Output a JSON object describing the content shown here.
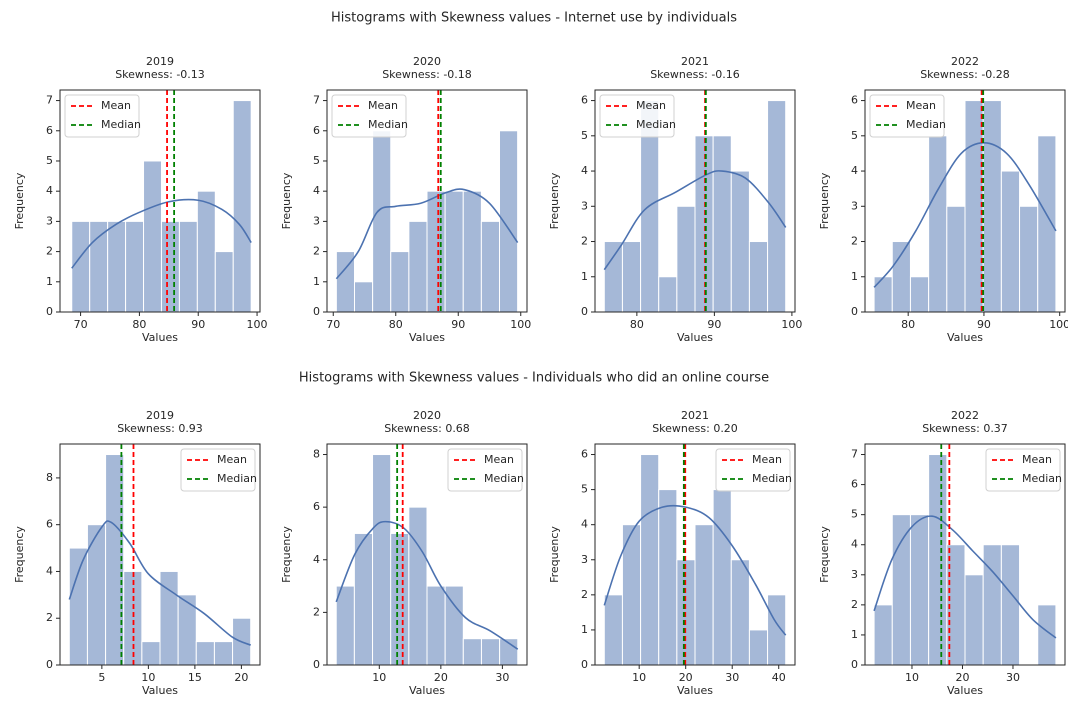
{
  "figure_titles": [
    "Histograms with Skewness values - Internet use by individuals",
    "Histograms with Skewness values - Individuals who did an online course"
  ],
  "chart_data": [
    {
      "type": "histogram",
      "title": "2019",
      "subtitle": "Skewness: -0.13",
      "xlabel": "Values",
      "ylabel": "Frequency",
      "color": "#a5b8d7",
      "bins": [
        68.5,
        71.55,
        74.6,
        77.65,
        80.7,
        83.75,
        86.8,
        89.85,
        92.9,
        95.95,
        99.0
      ],
      "counts": [
        3,
        3,
        3,
        3,
        5,
        3,
        3,
        4,
        2,
        7
      ],
      "xlim": [
        66.5,
        100.5
      ],
      "ylim": [
        0,
        7.35
      ],
      "xticks": [
        70,
        80,
        90,
        100
      ],
      "yticks": [
        0,
        1,
        2,
        3,
        4,
        5,
        6,
        7
      ],
      "kde": {
        "color": "#4c72b0",
        "x": [
          68.5,
          72,
          76,
          80,
          85,
          90,
          94,
          97,
          99
        ],
        "y": [
          1.45,
          2.3,
          2.9,
          3.3,
          3.65,
          3.7,
          3.4,
          2.9,
          2.3
        ]
      },
      "lines": [
        {
          "name": "Mean",
          "value": 84.7,
          "color": "#ff0000"
        },
        {
          "name": "Median",
          "value": 85.9,
          "color": "#008000"
        }
      ],
      "legend": "upper left"
    },
    {
      "type": "histogram",
      "title": "2020",
      "subtitle": "Skewness: -0.18",
      "xlabel": "Values",
      "ylabel": "Frequency",
      "color": "#a5b8d7",
      "bins": [
        70.5,
        73.4,
        76.3,
        79.2,
        82.1,
        85.0,
        87.9,
        90.8,
        93.7,
        96.6,
        99.5
      ],
      "counts": [
        2,
        1,
        6,
        2,
        3,
        4,
        4,
        4,
        3,
        6
      ],
      "xlim": [
        69,
        101
      ],
      "ylim": [
        0,
        7.35
      ],
      "xticks": [
        70,
        80,
        90,
        100
      ],
      "yticks": [
        0,
        1,
        2,
        3,
        4,
        5,
        6,
        7
      ],
      "kde": {
        "color": "#4c72b0",
        "x": [
          70.5,
          74,
          77,
          80,
          84,
          88,
          91,
          95,
          99.5
        ],
        "y": [
          1.1,
          2.0,
          3.3,
          3.5,
          3.6,
          3.95,
          4.05,
          3.6,
          2.3
        ]
      },
      "lines": [
        {
          "name": "Mean",
          "value": 86.8,
          "color": "#ff0000"
        },
        {
          "name": "Median",
          "value": 87.2,
          "color": "#008000"
        }
      ],
      "legend": "upper left"
    },
    {
      "type": "histogram",
      "title": "2021",
      "subtitle": "Skewness: -0.16",
      "xlabel": "Values",
      "ylabel": "Frequency",
      "color": "#a5b8d7",
      "bins": [
        75.8,
        78.14,
        80.48,
        82.82,
        85.16,
        87.5,
        89.84,
        92.18,
        94.52,
        96.86,
        99.2
      ],
      "counts": [
        2,
        2,
        6,
        1,
        3,
        5,
        5,
        4,
        2,
        6
      ],
      "xlim": [
        74.6,
        100.4
      ],
      "ylim": [
        0,
        6.3
      ],
      "xticks": [
        80,
        90,
        100
      ],
      "yticks": [
        0,
        1,
        2,
        3,
        4,
        5,
        6
      ],
      "kde": {
        "color": "#4c72b0",
        "x": [
          75.8,
          78,
          81,
          85,
          89,
          91,
          94,
          97,
          99.2
        ],
        "y": [
          1.2,
          1.9,
          2.9,
          3.4,
          3.9,
          4.0,
          3.8,
          3.1,
          2.4
        ]
      },
      "lines": [
        {
          "name": "Mean",
          "value": 88.8,
          "color": "#ff0000"
        },
        {
          "name": "Median",
          "value": 88.9,
          "color": "#008000"
        }
      ],
      "legend": "upper left"
    },
    {
      "type": "histogram",
      "title": "2022",
      "subtitle": "Skewness: -0.28",
      "xlabel": "Values",
      "ylabel": "Frequency",
      "color": "#a5b8d7",
      "bins": [
        75.5,
        77.9,
        80.3,
        82.7,
        85.1,
        87.5,
        89.9,
        92.3,
        94.7,
        97.1,
        99.5
      ],
      "counts": [
        1,
        2,
        1,
        5,
        3,
        6,
        6,
        4,
        3,
        5
      ],
      "xlim": [
        74.3,
        100.7
      ],
      "ylim": [
        0,
        6.3
      ],
      "xticks": [
        80,
        90,
        100
      ],
      "yticks": [
        0,
        1,
        2,
        3,
        4,
        5,
        6
      ],
      "kde": {
        "color": "#4c72b0",
        "x": [
          75.5,
          78,
          81,
          84,
          87,
          90,
          93,
          96,
          99.5
        ],
        "y": [
          0.7,
          1.3,
          2.3,
          3.5,
          4.5,
          4.8,
          4.5,
          3.6,
          2.3
        ]
      },
      "lines": [
        {
          "name": "Mean",
          "value": 89.7,
          "color": "#ff0000"
        },
        {
          "name": "Median",
          "value": 89.9,
          "color": "#008000"
        }
      ],
      "legend": "upper left"
    },
    {
      "type": "histogram",
      "title": "2019",
      "subtitle": "Skewness: 0.93",
      "xlabel": "Values",
      "ylabel": "Frequency",
      "color": "#a5b8d7",
      "bins": [
        1.5,
        3.45,
        5.4,
        7.35,
        9.3,
        11.25,
        13.2,
        15.15,
        17.1,
        19.05,
        21.0
      ],
      "counts": [
        5,
        6,
        9,
        4,
        1,
        4,
        3,
        1,
        1,
        2
      ],
      "xlim": [
        0.5,
        22
      ],
      "ylim": [
        0,
        9.45
      ],
      "xticks": [
        5,
        10,
        15,
        20
      ],
      "yticks": [
        0,
        2,
        4,
        6,
        8
      ],
      "kde": {
        "color": "#4c72b0",
        "x": [
          1.5,
          3,
          5,
          6,
          8,
          10,
          13,
          16,
          19,
          21
        ],
        "y": [
          2.8,
          4.5,
          5.9,
          6.1,
          5.2,
          3.9,
          3.0,
          2.2,
          1.2,
          0.85
        ]
      },
      "lines": [
        {
          "name": "Mean",
          "value": 8.4,
          "color": "#ff0000"
        },
        {
          "name": "Median",
          "value": 7.1,
          "color": "#008000"
        }
      ],
      "legend": "upper right"
    },
    {
      "type": "histogram",
      "title": "2020",
      "subtitle": "Skewness: 0.68",
      "xlabel": "Values",
      "ylabel": "Frequency",
      "color": "#a5b8d7",
      "bins": [
        3.0,
        5.95,
        8.9,
        11.85,
        14.8,
        17.75,
        20.7,
        23.65,
        26.6,
        29.55,
        32.5
      ],
      "counts": [
        3,
        5,
        8,
        5,
        6,
        3,
        3,
        1,
        1,
        1
      ],
      "xlim": [
        1.5,
        34
      ],
      "ylim": [
        0,
        8.4
      ],
      "xticks": [
        10,
        20,
        30
      ],
      "yticks": [
        0,
        2,
        4,
        6,
        8
      ],
      "kde": {
        "color": "#4c72b0",
        "x": [
          3,
          6,
          9,
          11,
          14,
          17,
          20,
          24,
          28,
          32.5
        ],
        "y": [
          2.4,
          4.2,
          5.2,
          5.45,
          5.2,
          4.3,
          3.0,
          1.8,
          1.3,
          0.6
        ]
      },
      "lines": [
        {
          "name": "Mean",
          "value": 13.8,
          "color": "#ff0000"
        },
        {
          "name": "Median",
          "value": 12.9,
          "color": "#008000"
        }
      ],
      "legend": "upper right"
    },
    {
      "type": "histogram",
      "title": "2021",
      "subtitle": "Skewness: 0.20",
      "xlabel": "Values",
      "ylabel": "Frequency",
      "color": "#a5b8d7",
      "bins": [
        2.5,
        6.4,
        10.3,
        14.2,
        18.1,
        22.0,
        25.9,
        29.8,
        33.7,
        37.6,
        41.5
      ],
      "counts": [
        2,
        4,
        6,
        5,
        3,
        4,
        5,
        3,
        1,
        2
      ],
      "xlim": [
        0.5,
        43.5
      ],
      "ylim": [
        0,
        6.3
      ],
      "xticks": [
        10,
        20,
        30,
        40
      ],
      "yticks": [
        0,
        1,
        2,
        3,
        4,
        5,
        6
      ],
      "kde": {
        "color": "#4c72b0",
        "x": [
          2.5,
          6,
          10,
          15,
          20,
          25,
          30,
          35,
          39,
          41.5
        ],
        "y": [
          1.7,
          3.1,
          4.1,
          4.5,
          4.5,
          4.2,
          3.4,
          2.3,
          1.3,
          0.85
        ]
      },
      "lines": [
        {
          "name": "Mean",
          "value": 19.9,
          "color": "#ff0000"
        },
        {
          "name": "Median",
          "value": 19.6,
          "color": "#008000"
        }
      ],
      "legend": "upper right"
    },
    {
      "type": "histogram",
      "title": "2022",
      "subtitle": "Skewness: 0.37",
      "xlabel": "Values",
      "ylabel": "Frequency",
      "color": "#a5b8d7",
      "bins": [
        2.5,
        6.1,
        9.7,
        13.3,
        16.9,
        20.5,
        24.1,
        27.7,
        31.3,
        34.9,
        38.5
      ],
      "counts": [
        2,
        5,
        5,
        7,
        4,
        3,
        4,
        4,
        0,
        2
      ],
      "xlim": [
        0.7,
        40.3
      ],
      "ylim": [
        0,
        7.35
      ],
      "xticks": [
        10,
        20,
        30
      ],
      "yticks": [
        0,
        1,
        2,
        3,
        4,
        5,
        6,
        7
      ],
      "kde": {
        "color": "#4c72b0",
        "x": [
          2.5,
          6,
          10,
          14,
          18,
          22,
          26,
          30,
          34,
          38.5
        ],
        "y": [
          1.8,
          3.5,
          4.6,
          4.95,
          4.5,
          3.8,
          3.1,
          2.3,
          1.5,
          0.9
        ]
      },
      "lines": [
        {
          "name": "Mean",
          "value": 17.4,
          "color": "#ff0000"
        },
        {
          "name": "Median",
          "value": 15.8,
          "color": "#008000"
        }
      ],
      "legend": "upper right"
    }
  ]
}
